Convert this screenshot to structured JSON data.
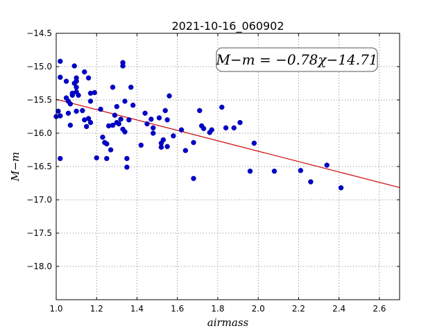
{
  "chart_data": {
    "type": "scatter",
    "title": "2021-10-16_060902",
    "xlabel": "airmass",
    "ylabel": "M−m",
    "xlim": [
      1.0,
      2.7
    ],
    "ylim": [
      -14.5,
      -18.5
    ],
    "y_inverted": true,
    "grid": true,
    "x_ticks": [
      1.0,
      1.2,
      1.4,
      1.6,
      1.8,
      2.0,
      2.2,
      2.4,
      2.6
    ],
    "x_tick_labels": [
      "1.0",
      "1.2",
      "1.4",
      "1.6",
      "1.8",
      "2.0",
      "2.2",
      "2.4",
      "2.6"
    ],
    "y_ticks": [
      -14.5,
      -15.0,
      -15.5,
      -16.0,
      -16.5,
      -17.0,
      -17.5,
      -18.0
    ],
    "y_tick_labels": [
      "−14.5",
      "−15.0",
      "−15.5",
      "−16.0",
      "−16.5",
      "−17.0",
      "−17.5",
      "−18.0"
    ],
    "point_color": "#0000cc",
    "fit_color": "#cc0000",
    "fit": {
      "slope": -0.78,
      "intercept": -14.71,
      "x_range": [
        1.0,
        2.7
      ]
    },
    "annotation": "M−m = −0.78χ−14.71",
    "points": [
      [
        1.02,
        -14.92
      ],
      [
        1.01,
        -15.67
      ],
      [
        1.0,
        -15.75
      ],
      [
        1.02,
        -15.74
      ],
      [
        1.02,
        -15.16
      ],
      [
        1.02,
        -16.38
      ],
      [
        1.05,
        -15.47
      ],
      [
        1.05,
        -15.22
      ],
      [
        1.06,
        -15.7
      ],
      [
        1.06,
        -15.52
      ],
      [
        1.07,
        -15.56
      ],
      [
        1.07,
        -15.88
      ],
      [
        1.08,
        -15.43
      ],
      [
        1.08,
        -15.4
      ],
      [
        1.09,
        -15.25
      ],
      [
        1.09,
        -14.99
      ],
      [
        1.1,
        -15.17
      ],
      [
        1.1,
        -15.38
      ],
      [
        1.1,
        -15.22
      ],
      [
        1.1,
        -15.31
      ],
      [
        1.1,
        -15.67
      ],
      [
        1.11,
        -15.43
      ],
      [
        1.13,
        -15.66
      ],
      [
        1.14,
        -15.08
      ],
      [
        1.14,
        -15.8
      ],
      [
        1.15,
        -15.9
      ],
      [
        1.16,
        -15.17
      ],
      [
        1.16,
        -15.78
      ],
      [
        1.17,
        -15.84
      ],
      [
        1.17,
        -15.52
      ],
      [
        1.17,
        -15.4
      ],
      [
        1.19,
        -15.39
      ],
      [
        1.2,
        -16.37
      ],
      [
        1.22,
        -15.64
      ],
      [
        1.23,
        -16.06
      ],
      [
        1.24,
        -16.14
      ],
      [
        1.25,
        -16.16
      ],
      [
        1.25,
        -16.38
      ],
      [
        1.26,
        -15.89
      ],
      [
        1.27,
        -16.25
      ],
      [
        1.28,
        -15.31
      ],
      [
        1.28,
        -15.88
      ],
      [
        1.29,
        -15.73
      ],
      [
        1.3,
        -15.6
      ],
      [
        1.3,
        -15.84
      ],
      [
        1.31,
        -15.86
      ],
      [
        1.32,
        -15.79
      ],
      [
        1.33,
        -14.94
      ],
      [
        1.33,
        -14.99
      ],
      [
        1.33,
        -15.94
      ],
      [
        1.34,
        -15.52
      ],
      [
        1.34,
        -15.98
      ],
      [
        1.35,
        -16.38
      ],
      [
        1.35,
        -16.51
      ],
      [
        1.36,
        -15.8
      ],
      [
        1.37,
        -15.31
      ],
      [
        1.38,
        -15.58
      ],
      [
        1.42,
        -16.18
      ],
      [
        1.44,
        -15.7
      ],
      [
        1.45,
        -15.86
      ],
      [
        1.47,
        -15.79
      ],
      [
        1.48,
        -16.0
      ],
      [
        1.48,
        -15.92
      ],
      [
        1.51,
        -15.77
      ],
      [
        1.52,
        -16.21
      ],
      [
        1.52,
        -16.15
      ],
      [
        1.53,
        -16.1
      ],
      [
        1.54,
        -15.66
      ],
      [
        1.55,
        -15.8
      ],
      [
        1.55,
        -16.2
      ],
      [
        1.56,
        -15.44
      ],
      [
        1.58,
        -16.04
      ],
      [
        1.62,
        -15.95
      ],
      [
        1.64,
        -16.26
      ],
      [
        1.68,
        -16.14
      ],
      [
        1.68,
        -16.68
      ],
      [
        1.71,
        -15.66
      ],
      [
        1.72,
        -15.89
      ],
      [
        1.73,
        -15.93
      ],
      [
        1.76,
        -15.99
      ],
      [
        1.77,
        -15.95
      ],
      [
        1.82,
        -15.61
      ],
      [
        1.84,
        -15.92
      ],
      [
        1.88,
        -15.92
      ],
      [
        1.91,
        -15.84
      ],
      [
        1.96,
        -16.57
      ],
      [
        1.98,
        -16.15
      ],
      [
        2.08,
        -16.57
      ],
      [
        2.21,
        -16.56
      ],
      [
        2.26,
        -16.73
      ],
      [
        2.34,
        -16.48
      ],
      [
        2.41,
        -16.82
      ]
    ]
  }
}
